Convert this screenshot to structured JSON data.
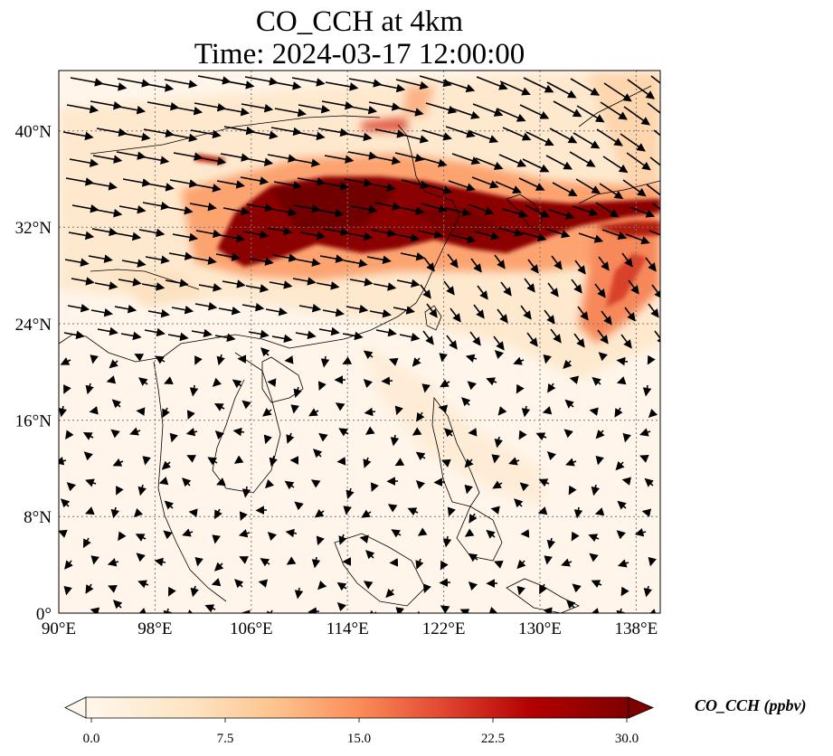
{
  "title": {
    "line1": "CO_CCH at 4km",
    "line2": "Time: 2024-03-17 12:00:00"
  },
  "map": {
    "variable": "CO_CCH",
    "level": "4km",
    "time": "2024-03-17 12:00:00",
    "lon_range": [
      90,
      140
    ],
    "lat_range": [
      0,
      45
    ],
    "lon_ticks": [
      "90°E",
      "98°E",
      "106°E",
      "114°E",
      "122°E",
      "130°E",
      "138°E"
    ],
    "lat_ticks": [
      "0°",
      "8°N",
      "16°N",
      "24°N",
      "32°N",
      "40°N"
    ],
    "gridlines": true,
    "overlay": "wind vectors"
  },
  "colorbar": {
    "label": "CO_CCH (ppbv)",
    "ticks": [
      "0.0",
      "7.5",
      "15.0",
      "22.5",
      "30.0"
    ],
    "min": 0,
    "max": 30,
    "colormap": "OrRd",
    "extend": "both"
  }
}
